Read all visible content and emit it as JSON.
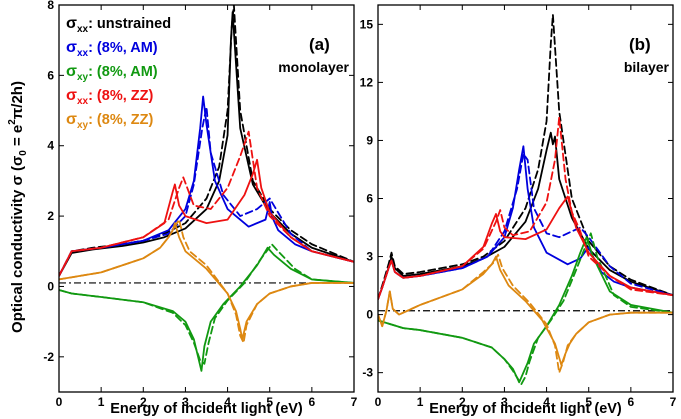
{
  "figure": {
    "ylabel_main": "Optical conductivity σ (σ",
    "ylabel_sub": "0",
    "ylabel_tail": " = e",
    "ylabel_sup": "2",
    "ylabel_end": "π/2h)"
  },
  "legend": [
    {
      "sym": "σ",
      "sub": "xx",
      "text": ": unstrained",
      "color": "#000000"
    },
    {
      "sym": "σ",
      "sub": "xx",
      "text": ": (8%, AM)",
      "color": "#0000dd"
    },
    {
      "sym": "σ",
      "sub": "xy",
      "text": ": (8%, AM)",
      "color": "#119911"
    },
    {
      "sym": "σ",
      "sub": "xx",
      "text": ": (8%, ZZ)",
      "color": "#ee1111"
    },
    {
      "sym": "σ",
      "sub": "xy",
      "text": ": (8%, ZZ)",
      "color": "#dd8811"
    }
  ],
  "chart_data": [
    {
      "type": "line",
      "panel_label": "(a)",
      "panel_name": "monolayer",
      "xlabel": "Energy of incident light (eV)",
      "xlim": [
        0,
        7
      ],
      "ylim": [
        -3,
        8
      ],
      "xticks": [
        0,
        1,
        2,
        3,
        4,
        5,
        6,
        7
      ],
      "yticks": [
        -2,
        0,
        2,
        4,
        6,
        8
      ],
      "zero_line": 0.1,
      "series": [
        {
          "name": "sxx unstrained",
          "color": "#000000",
          "dash": true,
          "x": [
            0.0,
            0.3,
            0.8,
            1.5,
            2.0,
            2.5,
            3.0,
            3.5,
            3.8,
            4.0,
            4.1,
            4.15,
            4.3,
            4.6,
            5.0,
            5.5,
            6.0,
            7.0
          ],
          "y": [
            0.3,
            1.0,
            1.1,
            1.2,
            1.3,
            1.5,
            1.8,
            2.5,
            3.4,
            5.0,
            7.4,
            8.0,
            5.0,
            3.0,
            2.2,
            1.6,
            1.2,
            0.7
          ]
        },
        {
          "name": "sxx unstrained",
          "color": "#000000",
          "dash": false,
          "x": [
            0.0,
            0.3,
            0.8,
            1.5,
            2.0,
            2.5,
            3.0,
            3.5,
            3.8,
            4.0,
            4.08,
            4.12,
            4.3,
            4.6,
            5.0,
            5.5,
            6.0,
            7.0
          ],
          "y": [
            0.3,
            0.95,
            1.05,
            1.15,
            1.25,
            1.4,
            1.65,
            2.2,
            3.0,
            4.3,
            7.0,
            7.8,
            4.5,
            2.9,
            2.1,
            1.5,
            1.1,
            0.7
          ]
        },
        {
          "name": "sxx AM",
          "color": "#0000dd",
          "dash": false,
          "x": [
            0.0,
            0.3,
            1.0,
            2.0,
            2.6,
            3.0,
            3.2,
            3.35,
            3.42,
            3.5,
            3.7,
            4.0,
            4.5,
            4.9,
            5.0,
            5.05,
            5.2,
            5.6,
            6.0,
            7.0
          ],
          "y": [
            0.3,
            1.0,
            1.1,
            1.3,
            1.6,
            2.2,
            3.0,
            4.5,
            5.4,
            4.6,
            3.0,
            2.2,
            1.7,
            1.9,
            2.4,
            2.0,
            1.6,
            1.2,
            1.0,
            0.7
          ]
        },
        {
          "name": "sxx AM",
          "color": "#0000dd",
          "dash": true,
          "x": [
            0.0,
            0.3,
            1.0,
            2.0,
            2.6,
            3.0,
            3.2,
            3.4,
            3.5,
            3.6,
            3.9,
            4.3,
            4.7,
            5.0,
            5.5,
            6.0,
            7.0
          ],
          "y": [
            0.3,
            1.0,
            1.1,
            1.3,
            1.5,
            2.0,
            2.9,
            4.5,
            5.1,
            3.8,
            2.6,
            2.0,
            2.2,
            2.5,
            1.5,
            1.0,
            0.7
          ]
        },
        {
          "name": "sxy AM",
          "color": "#119911",
          "dash": false,
          "x": [
            0.0,
            0.3,
            1.0,
            2.0,
            2.7,
            3.0,
            3.2,
            3.3,
            3.38,
            3.45,
            3.6,
            3.9,
            4.3,
            4.7,
            4.95,
            5.1,
            5.5,
            6.0,
            7.0
          ],
          "y": [
            -0.1,
            -0.2,
            -0.3,
            -0.45,
            -0.7,
            -1.0,
            -1.5,
            -2.0,
            -2.4,
            -1.7,
            -1.0,
            -0.5,
            0.0,
            0.6,
            1.1,
            0.9,
            0.5,
            0.2,
            0.1
          ]
        },
        {
          "name": "sxy AM",
          "color": "#119911",
          "dash": true,
          "x": [
            0.0,
            0.3,
            1.0,
            2.0,
            2.7,
            3.0,
            3.2,
            3.35,
            3.45,
            3.55,
            3.7,
            4.0,
            4.4,
            4.8,
            5.05,
            5.2,
            5.6,
            6.0,
            7.0
          ],
          "y": [
            -0.1,
            -0.2,
            -0.3,
            -0.45,
            -0.75,
            -1.1,
            -1.6,
            -2.1,
            -2.2,
            -1.6,
            -0.9,
            -0.4,
            0.1,
            0.8,
            1.2,
            1.0,
            0.5,
            0.2,
            0.1
          ]
        },
        {
          "name": "sxx ZZ",
          "color": "#ee1111",
          "dash": false,
          "x": [
            0.0,
            0.3,
            1.0,
            2.0,
            2.5,
            2.7,
            2.75,
            2.85,
            3.0,
            3.5,
            4.0,
            4.4,
            4.6,
            4.7,
            4.8,
            5.0,
            5.5,
            6.0,
            7.0
          ],
          "y": [
            0.3,
            1.0,
            1.1,
            1.4,
            1.8,
            2.7,
            2.9,
            2.3,
            2.0,
            1.8,
            1.9,
            2.6,
            3.2,
            3.6,
            2.8,
            2.1,
            1.4,
            1.0,
            0.7
          ]
        },
        {
          "name": "sxx ZZ",
          "color": "#ee1111",
          "dash": true,
          "x": [
            0.0,
            0.3,
            1.0,
            2.0,
            2.6,
            2.85,
            2.95,
            3.2,
            3.6,
            4.0,
            4.3,
            4.5,
            4.6,
            4.7,
            5.0,
            5.5,
            6.0,
            7.0
          ],
          "y": [
            0.3,
            1.0,
            1.1,
            1.4,
            1.9,
            2.8,
            3.1,
            2.3,
            2.2,
            2.8,
            3.7,
            4.4,
            3.6,
            2.8,
            2.0,
            1.4,
            1.0,
            0.7
          ]
        },
        {
          "name": "sxy ZZ",
          "color": "#dd8811",
          "dash": false,
          "x": [
            0.0,
            0.5,
            1.0,
            1.5,
            2.0,
            2.4,
            2.6,
            2.7,
            2.75,
            2.85,
            3.0,
            3.5,
            4.0,
            4.2,
            4.3,
            4.35,
            4.45,
            4.7,
            5.0,
            5.5,
            6.0,
            7.0
          ],
          "y": [
            0.2,
            0.3,
            0.4,
            0.6,
            0.8,
            1.1,
            1.4,
            1.6,
            1.8,
            1.4,
            1.0,
            0.5,
            -0.2,
            -0.7,
            -1.2,
            -1.5,
            -1.0,
            -0.5,
            -0.2,
            0.0,
            0.1,
            0.1
          ]
        },
        {
          "name": "sxy ZZ",
          "color": "#dd8811",
          "dash": true,
          "x": [
            0.0,
            0.5,
            1.0,
            1.5,
            2.0,
            2.4,
            2.6,
            2.75,
            2.85,
            2.95,
            3.1,
            3.5,
            4.0,
            4.2,
            4.3,
            4.38,
            4.45,
            4.7,
            5.0,
            5.5,
            6.0,
            7.0
          ],
          "y": [
            0.2,
            0.3,
            0.4,
            0.6,
            0.8,
            1.1,
            1.4,
            1.7,
            1.9,
            1.4,
            1.0,
            0.6,
            -0.2,
            -0.8,
            -1.4,
            -1.6,
            -1.1,
            -0.5,
            -0.2,
            0.0,
            0.1,
            0.1
          ]
        }
      ]
    },
    {
      "type": "line",
      "panel_label": "(b)",
      "panel_name": "bilayer",
      "xlabel": "Energy of incident light (eV)",
      "xlim": [
        0,
        7
      ],
      "ylim": [
        -4,
        16
      ],
      "xticks": [
        0,
        1,
        2,
        3,
        4,
        5,
        6,
        7
      ],
      "yticks": [
        -3,
        0,
        3,
        6,
        9,
        12,
        15
      ],
      "zero_line": 0.2,
      "series": [
        {
          "name": "sxx unstrained",
          "color": "#000000",
          "dash": true,
          "x": [
            0.0,
            0.1,
            0.25,
            0.32,
            0.4,
            0.6,
            1.0,
            2.0,
            2.5,
            3.0,
            3.5,
            3.8,
            4.0,
            4.1,
            4.15,
            4.3,
            4.6,
            5.0,
            5.5,
            6.0,
            7.0
          ],
          "y": [
            0.8,
            1.5,
            2.6,
            3.2,
            2.5,
            2.1,
            2.2,
            2.6,
            3.0,
            3.8,
            5.5,
            7.5,
            10.0,
            14.0,
            15.5,
            10.5,
            6.0,
            3.8,
            2.5,
            1.8,
            1.0
          ]
        },
        {
          "name": "sxx unstrained",
          "color": "#000000",
          "dash": false,
          "x": [
            0.0,
            0.1,
            0.25,
            0.32,
            0.4,
            0.6,
            1.0,
            2.0,
            2.5,
            3.0,
            3.5,
            3.8,
            4.0,
            4.1,
            4.15,
            4.2,
            4.3,
            4.6,
            5.0,
            5.5,
            6.0,
            7.0
          ],
          "y": [
            0.8,
            1.4,
            2.4,
            3.0,
            2.4,
            2.0,
            2.1,
            2.5,
            2.9,
            3.5,
            4.8,
            6.5,
            8.5,
            9.4,
            8.8,
            9.2,
            7.0,
            5.0,
            3.4,
            2.3,
            1.7,
            1.0
          ]
        },
        {
          "name": "sxx AM",
          "color": "#0000dd",
          "dash": false,
          "x": [
            0.0,
            0.1,
            0.25,
            0.32,
            0.4,
            0.6,
            1.0,
            2.0,
            2.6,
            3.0,
            3.2,
            3.35,
            3.45,
            3.55,
            3.7,
            4.0,
            4.5,
            4.8,
            5.0,
            5.1,
            5.3,
            5.6,
            6.0,
            7.0
          ],
          "y": [
            0.8,
            1.4,
            2.4,
            2.8,
            2.2,
            1.9,
            2.0,
            2.4,
            3.0,
            4.0,
            5.5,
            7.5,
            8.7,
            6.5,
            4.5,
            3.2,
            2.6,
            2.9,
            3.5,
            3.0,
            2.2,
            1.7,
            1.4,
            1.0
          ]
        },
        {
          "name": "sxx AM",
          "color": "#0000dd",
          "dash": true,
          "x": [
            0.0,
            0.1,
            0.25,
            0.32,
            0.4,
            0.6,
            1.0,
            2.0,
            2.6,
            3.0,
            3.3,
            3.45,
            3.55,
            3.7,
            4.0,
            4.3,
            4.6,
            4.8,
            5.0,
            5.5,
            6.0,
            7.0
          ],
          "y": [
            0.8,
            1.4,
            2.4,
            2.8,
            2.2,
            1.9,
            2.0,
            2.4,
            3.0,
            4.3,
            6.5,
            8.3,
            8.0,
            5.5,
            4.2,
            4.0,
            4.3,
            4.5,
            4.0,
            2.5,
            1.6,
            1.0
          ]
        },
        {
          "name": "sxy AM",
          "color": "#119911",
          "dash": false,
          "x": [
            0.0,
            0.3,
            0.6,
            1.0,
            2.0,
            2.7,
            3.0,
            3.2,
            3.35,
            3.45,
            3.55,
            3.7,
            4.0,
            4.3,
            4.6,
            4.8,
            4.95,
            5.1,
            5.5,
            6.0,
            7.0
          ],
          "y": [
            -0.3,
            -0.5,
            -0.7,
            -0.8,
            -1.2,
            -1.7,
            -2.3,
            -2.8,
            -3.5,
            -3.0,
            -2.5,
            -1.5,
            -0.6,
            0.5,
            2.0,
            3.2,
            4.0,
            3.0,
            1.2,
            0.5,
            0.1
          ]
        },
        {
          "name": "sxy AM",
          "color": "#119911",
          "dash": true,
          "x": [
            0.0,
            0.3,
            0.6,
            1.0,
            2.0,
            2.7,
            3.0,
            3.2,
            3.4,
            3.5,
            3.6,
            3.8,
            4.1,
            4.4,
            4.7,
            4.9,
            5.05,
            5.2,
            5.6,
            6.0,
            7.0
          ],
          "y": [
            -0.3,
            -0.5,
            -0.7,
            -0.8,
            -1.2,
            -1.7,
            -2.3,
            -2.9,
            -3.6,
            -3.2,
            -2.4,
            -1.2,
            -0.3,
            0.7,
            2.3,
            3.4,
            4.2,
            3.0,
            1.0,
            0.4,
            0.1
          ]
        },
        {
          "name": "sxx ZZ",
          "color": "#ee1111",
          "dash": false,
          "x": [
            0.0,
            0.1,
            0.25,
            0.32,
            0.4,
            0.6,
            1.0,
            2.0,
            2.5,
            2.7,
            2.8,
            2.9,
            3.0,
            3.5,
            4.0,
            4.3,
            4.5,
            4.6,
            4.7,
            5.0,
            5.5,
            6.0,
            7.0
          ],
          "y": [
            0.8,
            1.4,
            2.4,
            2.8,
            2.2,
            1.9,
            2.0,
            2.5,
            3.5,
            4.7,
            5.2,
            4.3,
            4.0,
            3.9,
            4.4,
            5.5,
            6.1,
            5.3,
            4.5,
            3.2,
            2.0,
            1.4,
            1.0
          ]
        },
        {
          "name": "sxx ZZ",
          "color": "#ee1111",
          "dash": true,
          "x": [
            0.0,
            0.1,
            0.25,
            0.32,
            0.4,
            0.6,
            1.0,
            2.0,
            2.5,
            2.8,
            2.9,
            3.0,
            3.2,
            3.6,
            4.0,
            4.2,
            4.3,
            4.45,
            4.6,
            4.8,
            5.0,
            5.5,
            6.0,
            7.0
          ],
          "y": [
            0.8,
            1.4,
            2.4,
            2.8,
            2.2,
            1.9,
            2.0,
            2.5,
            3.4,
            4.8,
            5.4,
            4.5,
            4.1,
            4.3,
            5.8,
            8.0,
            10.2,
            7.0,
            5.3,
            4.3,
            3.0,
            2.0,
            1.3,
            1.0
          ]
        },
        {
          "name": "sxy ZZ",
          "color": "#dd8811",
          "dash": false,
          "x": [
            0.0,
            0.1,
            0.2,
            0.28,
            0.35,
            0.5,
            1.0,
            1.5,
            2.0,
            2.5,
            2.7,
            2.8,
            2.9,
            3.1,
            3.5,
            3.9,
            4.2,
            4.35,
            4.45,
            4.55,
            4.7,
            5.0,
            5.5,
            6.0,
            7.0
          ],
          "y": [
            0.0,
            -0.6,
            0.2,
            1.2,
            0.3,
            0.0,
            0.5,
            0.9,
            1.3,
            2.1,
            2.6,
            3.0,
            2.3,
            1.5,
            0.7,
            -0.3,
            -1.5,
            -2.6,
            -2.0,
            -1.5,
            -1.0,
            -0.4,
            0.0,
            0.1,
            0.1
          ]
        },
        {
          "name": "sxy ZZ",
          "color": "#dd8811",
          "dash": true,
          "x": [
            0.0,
            0.1,
            0.2,
            0.28,
            0.35,
            0.5,
            1.0,
            1.5,
            2.0,
            2.5,
            2.75,
            2.85,
            2.95,
            3.2,
            3.6,
            4.0,
            4.2,
            4.3,
            4.4,
            4.5,
            4.7,
            5.0,
            5.5,
            6.0,
            7.0
          ],
          "y": [
            0.0,
            -0.6,
            0.2,
            1.2,
            0.3,
            0.0,
            0.5,
            0.9,
            1.3,
            2.2,
            2.7,
            3.1,
            2.4,
            1.5,
            0.6,
            -0.5,
            -1.6,
            -3.0,
            -2.4,
            -1.6,
            -1.0,
            -0.4,
            0.0,
            0.1,
            0.1
          ]
        }
      ]
    }
  ]
}
